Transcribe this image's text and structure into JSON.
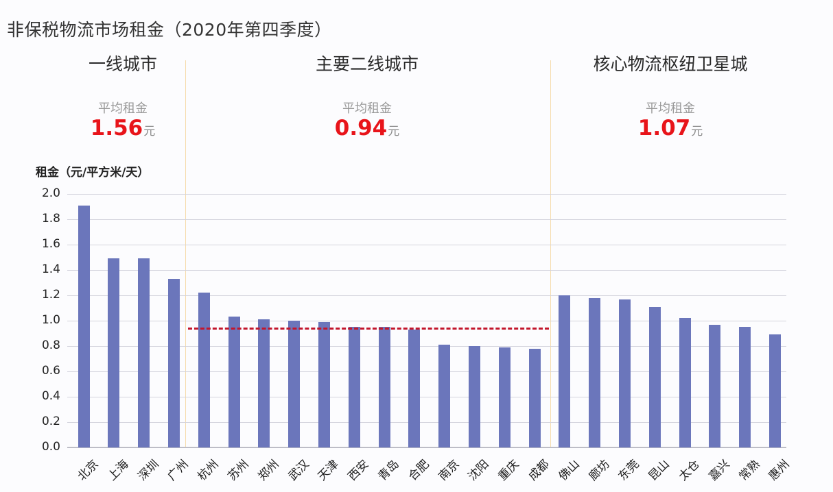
{
  "title": "非保税物流市场租金（2020年第四季度）",
  "sections": [
    {
      "name": "一线城市",
      "avg_label": "平均租金",
      "avg_value": "1.56",
      "unit": "元"
    },
    {
      "name": "主要二线城市",
      "avg_label": "平均租金",
      "avg_value": "0.94",
      "unit": "元"
    },
    {
      "name": "核心物流枢纽卫星城",
      "avg_label": "平均租金",
      "avg_value": "1.07",
      "unit": "元"
    }
  ],
  "colors": {
    "bar": "#6b76bb",
    "avg_line": "#c2162c",
    "highlight": "#e8141a",
    "divider": "#f6dcae"
  },
  "chart_data": {
    "type": "bar",
    "title": "非保税物流市场租金（2020年第四季度）",
    "xlabel": "",
    "ylabel": "租金（元/平方米/天）",
    "ylim": [
      0,
      2.0
    ],
    "yticks": [
      "0.0",
      "0.2",
      "0.4",
      "0.6",
      "0.8",
      "1.0",
      "1.2",
      "1.4",
      "1.6",
      "1.8",
      "2.0"
    ],
    "grid": true,
    "categories": [
      "北京",
      "上海",
      "深圳",
      "广州",
      "杭州",
      "苏州",
      "郑州",
      "武汉",
      "天津",
      "西安",
      "青岛",
      "合肥",
      "南京",
      "沈阳",
      "重庆",
      "成都",
      "佛山",
      "廊坊",
      "东莞",
      "昆山",
      "太仓",
      "嘉兴",
      "常熟",
      "惠州"
    ],
    "values": [
      1.91,
      1.49,
      1.49,
      1.33,
      1.22,
      1.03,
      1.01,
      1.0,
      0.99,
      0.95,
      0.95,
      0.93,
      0.81,
      0.8,
      0.79,
      0.78,
      1.2,
      1.18,
      1.17,
      1.11,
      1.02,
      0.97,
      0.95,
      0.89
    ],
    "groups": [
      {
        "name": "一线城市",
        "start": 0,
        "end": 3,
        "average": 1.56
      },
      {
        "name": "主要二线城市",
        "start": 4,
        "end": 15,
        "average": 0.94
      },
      {
        "name": "核心物流枢纽卫星城",
        "start": 16,
        "end": 23,
        "average": 1.07
      }
    ],
    "annotations": [
      {
        "type": "dashed-line",
        "group": "主要二线城市",
        "value": 0.94
      }
    ]
  }
}
